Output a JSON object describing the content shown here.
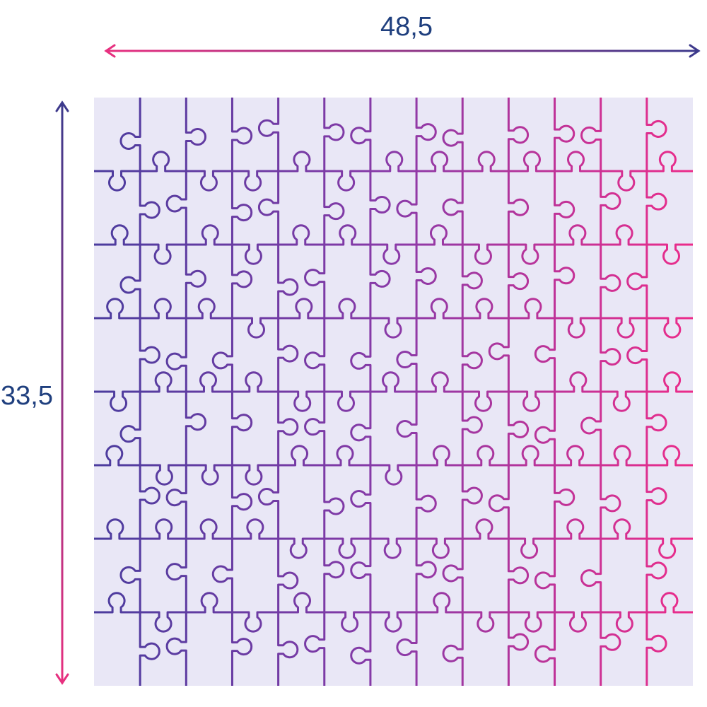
{
  "dimensions": {
    "width": "48,5",
    "height": "33,5"
  }
}
